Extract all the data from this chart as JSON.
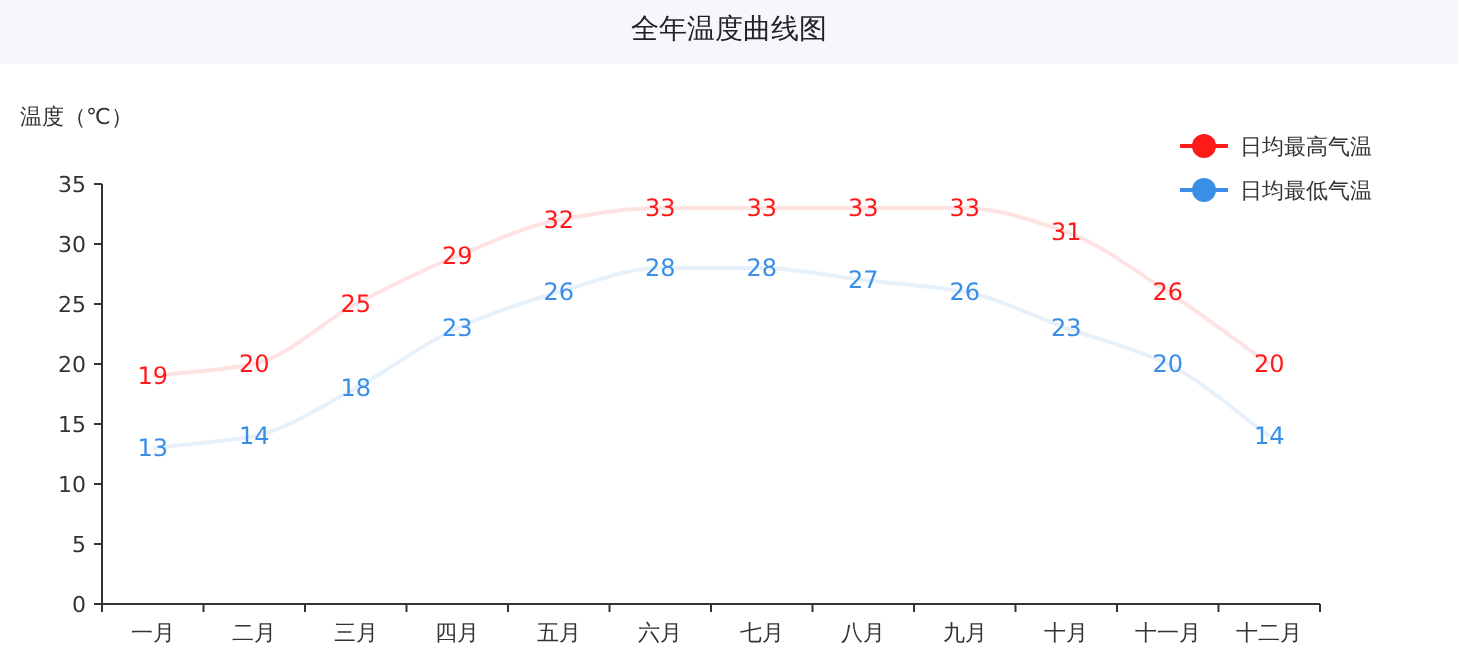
{
  "chart_data": {
    "type": "line",
    "title": "全年温度曲线图",
    "ylabel": "温度（℃）",
    "categories": [
      "一月",
      "二月",
      "三月",
      "四月",
      "五月",
      "六月",
      "七月",
      "八月",
      "九月",
      "十月",
      "十一月",
      "十二月"
    ],
    "series": [
      {
        "name": "日均最高气温",
        "color": "#ff1a1a",
        "values": [
          19,
          20,
          25,
          29,
          32,
          33,
          33,
          33,
          33,
          31,
          26,
          20
        ]
      },
      {
        "name": "日均最低气温",
        "color": "#3a8ee6",
        "values": [
          13,
          14,
          18,
          23,
          26,
          28,
          28,
          27,
          26,
          23,
          20,
          14
        ]
      }
    ],
    "ylim": [
      0,
      35
    ],
    "yticks": [
      0,
      5,
      10,
      15,
      20,
      25,
      30,
      35
    ],
    "grid": false,
    "legend": "top right",
    "marker": "none",
    "line_style": "solid",
    "data_labels": true
  }
}
